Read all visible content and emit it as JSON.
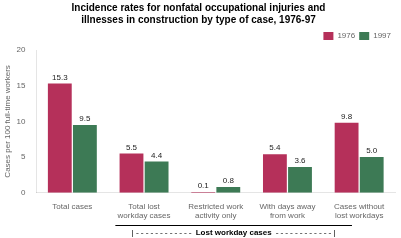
{
  "chart_data": {
    "type": "bar",
    "title": [
      "Incidence rates for nonfatal occupational injuries and",
      "illnesses in construction by type of case, 1976-97"
    ],
    "categories": [
      "Total cases",
      "Total lost\nworkday cases",
      "Restricted work\nactivity only",
      "With days away\nfrom work",
      "Cases without\nlost workdays"
    ],
    "series": [
      {
        "name": "1976",
        "color": "#b5305a",
        "values": [
          15.3,
          5.5,
          0.1,
          5.4,
          9.8
        ]
      },
      {
        "name": "1997",
        "color": "#3d7a55",
        "values": [
          9.5,
          4.4,
          0.8,
          3.6,
          5.0
        ],
        "value_labels": [
          "9.5",
          "4.4",
          "0.8",
          "3.6",
          "5.0"
        ]
      }
    ],
    "ylabel": "Cases per 100 full-time workers",
    "ylim": [
      0,
      20
    ],
    "yticks": [
      0,
      5,
      10,
      15,
      20
    ],
    "grid": false,
    "legend": "upper right",
    "data_labels": true,
    "annotations": [
      "|------------",
      "Lost workday cases",
      "------------|"
    ]
  }
}
